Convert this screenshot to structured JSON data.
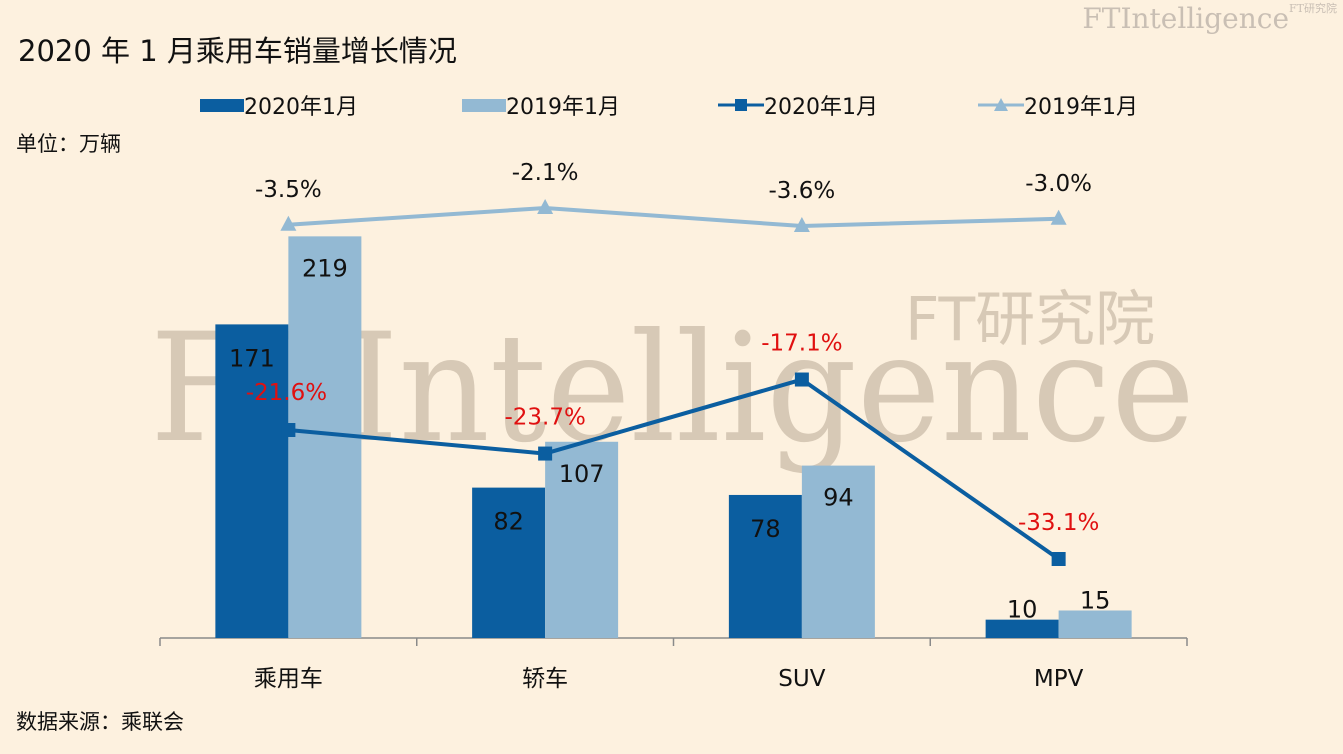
{
  "title": "2020 年 1 月乘用车销量增长情况",
  "brand": {
    "main": "FTIntelligence",
    "sub": "FT研究院"
  },
  "watermark": {
    "main": "FTIntelligence",
    "sub": "FT研究院"
  },
  "unit_label": "单位：万辆",
  "source_label": "数据来源：乘联会",
  "colors": {
    "dark": "#0b5ea0",
    "light": "#93b9d3",
    "growth_red": "#e01010",
    "growth_black": "#111111",
    "background": "#fdf1df"
  },
  "legend": [
    {
      "label": "2020年1月",
      "kind": "bar",
      "color": "#0b5ea0"
    },
    {
      "label": "2019年1月",
      "kind": "bar",
      "color": "#93b9d3"
    },
    {
      "label": "2020年1月",
      "kind": "line-square",
      "color": "#0b5ea0"
    },
    {
      "label": "2019年1月",
      "kind": "line-triangle",
      "color": "#93b9d3"
    }
  ],
  "chart_data": {
    "type": "bar",
    "categories": [
      "乘用车",
      "轿车",
      "SUV",
      "MPV"
    ],
    "series": [
      {
        "name": "2020年1月",
        "type": "bar",
        "values": [
          171,
          82,
          78,
          10
        ]
      },
      {
        "name": "2019年1月",
        "type": "bar",
        "values": [
          219,
          107,
          94,
          15
        ]
      },
      {
        "name": "2020年1月",
        "type": "line",
        "values": [
          -21.6,
          -23.7,
          -17.1,
          -33.1
        ],
        "labels": [
          "-21.6%",
          "-23.7%",
          "-17.1%",
          "-33.1%"
        ]
      },
      {
        "name": "2019年1月",
        "type": "line",
        "values": [
          -3.5,
          -2.1,
          -3.6,
          -3.0
        ],
        "labels": [
          "-3.5%",
          "-2.1%",
          "-3.6%",
          "-3.0%"
        ]
      }
    ],
    "ylim": [
      0,
      240
    ],
    "legend_position": "top",
    "grid": false
  }
}
